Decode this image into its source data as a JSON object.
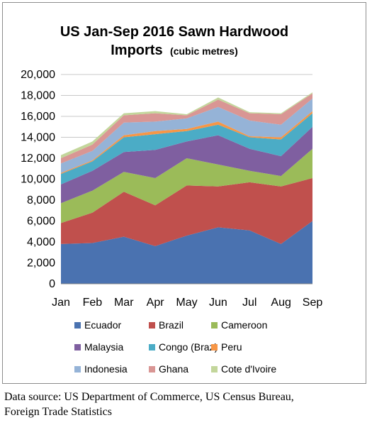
{
  "chart_data": {
    "type": "area",
    "stacked": true,
    "title": "US Jan-Sep 2016 Sawn Hardwood",
    "title_line2": "Imports",
    "title_unit": "(cubic metres)",
    "categories": [
      "Jan",
      "Feb",
      "Mar",
      "Apr",
      "May",
      "Jun",
      "Jul",
      "Aug",
      "Sep"
    ],
    "ylim": [
      0,
      20000
    ],
    "yticks": [
      0,
      2000,
      4000,
      6000,
      8000,
      10000,
      12000,
      14000,
      16000,
      18000,
      20000
    ],
    "ytick_labels": [
      "0",
      "2,000",
      "4,000",
      "6,000",
      "8,000",
      "10,000",
      "12,000",
      "14,000",
      "16,000",
      "18,000",
      "20,000"
    ],
    "grid": true,
    "legend_position": "bottom",
    "series": [
      {
        "name": "Ecuador",
        "color": "#4a72b0",
        "values": [
          3800,
          3900,
          4500,
          3600,
          4600,
          5400,
          5100,
          3800,
          6000
        ]
      },
      {
        "name": "Brazil",
        "color": "#c0504d",
        "values": [
          2000,
          2900,
          4300,
          3900,
          4800,
          3900,
          4600,
          5500,
          4100
        ]
      },
      {
        "name": "Cameroon",
        "color": "#9bbb59",
        "values": [
          1900,
          2100,
          1900,
          2600,
          2600,
          2100,
          1100,
          1000,
          2800
        ]
      },
      {
        "name": "Malaysia",
        "color": "#7f5fa0",
        "values": [
          1800,
          1900,
          1900,
          2700,
          1600,
          2800,
          2100,
          1900,
          2100
        ]
      },
      {
        "name": "Congo (Braz)",
        "color": "#4bacc6",
        "values": [
          1000,
          900,
          1400,
          1500,
          1000,
          1000,
          1100,
          1600,
          1300
        ]
      },
      {
        "name": "Peru",
        "color": "#f79646",
        "values": [
          100,
          100,
          200,
          300,
          200,
          300,
          100,
          200,
          200
        ]
      },
      {
        "name": "Indonesia",
        "color": "#95b3d7",
        "values": [
          900,
          900,
          1200,
          900,
          1000,
          1400,
          1500,
          1200,
          1200
        ]
      },
      {
        "name": "Ghana",
        "color": "#d99694",
        "values": [
          500,
          600,
          700,
          800,
          300,
          700,
          700,
          1000,
          500
        ]
      },
      {
        "name": "Cote d'Ivoire",
        "color": "#c3d69b",
        "values": [
          300,
          300,
          200,
          200,
          100,
          200,
          100,
          100,
          100
        ]
      }
    ]
  },
  "caption": {
    "line1": "Data source: US Department of Commerce, US Census Bureau,",
    "line2": "Foreign Trade Statistics"
  }
}
